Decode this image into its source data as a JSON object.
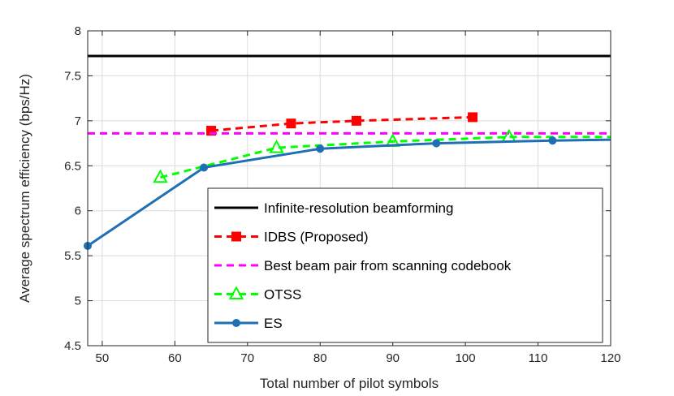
{
  "chart_data": {
    "type": "line",
    "title": "",
    "xlabel": "Total number of pilot symbols",
    "ylabel": "Average spectrum efficiency (bps/Hz)",
    "xlim": [
      48,
      120
    ],
    "ylim": [
      4.5,
      8
    ],
    "xticks": [
      50,
      60,
      70,
      80,
      90,
      100,
      110,
      120
    ],
    "yticks": [
      4.5,
      5,
      5.5,
      6,
      6.5,
      7,
      7.5,
      8
    ],
    "xtick_labels": [
      "50",
      "60",
      "70",
      "80",
      "90",
      "100",
      "110",
      "120"
    ],
    "ytick_labels": [
      "4.5",
      "5",
      "5.5",
      "6",
      "6.5",
      "7",
      "7.5",
      "8"
    ],
    "grid": true,
    "legend_position": "bottom-right",
    "series": [
      {
        "name": "Infinite-resolution beamforming",
        "color": "#000000",
        "dash": "solid",
        "marker": "none",
        "x": [
          48,
          120
        ],
        "y": [
          7.72,
          7.72
        ]
      },
      {
        "name": "IDBS (Proposed)",
        "color": "#ff0000",
        "dash": "dashed",
        "marker": "square",
        "x": [
          65,
          76,
          85,
          101
        ],
        "y": [
          6.89,
          6.97,
          7.0,
          7.04
        ]
      },
      {
        "name": "Best beam pair from scanning codebook",
        "color": "#ff00ff",
        "dash": "dashed",
        "marker": "none",
        "x": [
          48,
          120
        ],
        "y": [
          6.86,
          6.86
        ]
      },
      {
        "name": "OTSS",
        "color": "#00ff00",
        "dash": "dashed",
        "marker": "triangle",
        "x": [
          58,
          74,
          90,
          106,
          120
        ],
        "y": [
          6.37,
          6.7,
          6.77,
          6.82,
          6.82
        ]
      },
      {
        "name": "ES",
        "color": "#1f6fb5",
        "dash": "solid",
        "marker": "circle",
        "x": [
          48,
          64,
          80,
          96,
          112,
          120
        ],
        "y": [
          5.61,
          6.48,
          6.69,
          6.75,
          6.78,
          6.79
        ]
      }
    ]
  }
}
